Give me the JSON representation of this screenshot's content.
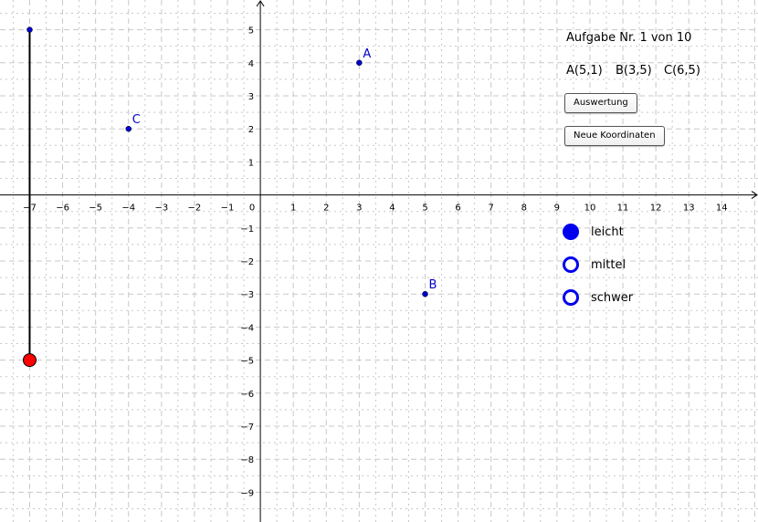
{
  "axes": {
    "x_ticks": [
      "−7",
      "−6",
      "−5",
      "−4",
      "−3",
      "−2",
      "−1",
      "0",
      "1",
      "2",
      "3",
      "4",
      "5",
      "6",
      "7",
      "8",
      "9",
      "10",
      "11",
      "12",
      "13",
      "14"
    ],
    "x_values": [
      -7,
      -6,
      -5,
      -4,
      -3,
      -2,
      -1,
      0,
      1,
      2,
      3,
      4,
      5,
      6,
      7,
      8,
      9,
      10,
      11,
      12,
      13,
      14
    ],
    "y_ticks": [
      "5",
      "4",
      "3",
      "2",
      "1",
      "−1",
      "−2",
      "−3",
      "−4",
      "−5",
      "−6",
      "−7",
      "−8",
      "−9"
    ],
    "y_values": [
      5,
      4,
      3,
      2,
      1,
      -1,
      -2,
      -3,
      -4,
      -5,
      -6,
      -7,
      -8,
      -9
    ],
    "x_range": [
      -7.9,
      15.1
    ],
    "y_range": [
      -9.9,
      5.9
    ],
    "grid": true
  },
  "points": [
    {
      "label": "A",
      "x": 3,
      "y": 4
    },
    {
      "label": "B",
      "x": 5,
      "y": -3
    },
    {
      "label": "C",
      "x": -4,
      "y": 2
    }
  ],
  "slider": {
    "x": -7,
    "y_top": 5,
    "y_bottom": -5,
    "value_y": -5,
    "handle_color": "#ff0000",
    "track_color": "#000000"
  },
  "colors": {
    "point": "#0000cc",
    "grid": "#c8c8c8",
    "radio": "#0000ee"
  },
  "panel": {
    "task_title": "Aufgabe Nr. 1 von 10",
    "coords": [
      "A(5,1)",
      "B(3,5)",
      "C(6,5)"
    ],
    "evaluate_label": "Auswertung",
    "new_coords_label": "Neue Koordinaten"
  },
  "difficulty": {
    "options": [
      "leicht",
      "mittel",
      "schwer"
    ],
    "selected": "leicht"
  }
}
